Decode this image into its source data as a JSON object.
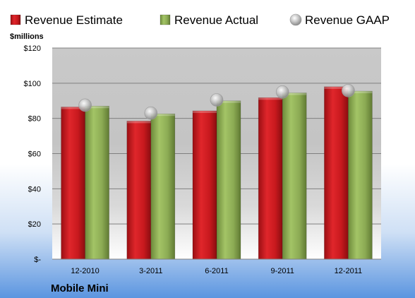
{
  "chart_data": {
    "type": "bar",
    "title": "",
    "unit_label": "$millions",
    "company_label": "Mobile Mini",
    "categories": [
      "12-2010",
      "3-2011",
      "6-2011",
      "9-2011",
      "12-2011"
    ],
    "series": [
      {
        "name": "Revenue Estimate",
        "type": "bar",
        "color": "#c8191e",
        "values": [
          86.5,
          78.5,
          84.3,
          91.8,
          98.0
        ]
      },
      {
        "name": "Revenue Actual",
        "type": "bar",
        "color": "#8cab54",
        "values": [
          87.0,
          82.6,
          90.0,
          94.5,
          95.5
        ]
      },
      {
        "name": "Revenue GAAP",
        "type": "marker",
        "color": "#b8b8b8",
        "values": [
          87.5,
          83.0,
          90.5,
          95.0,
          95.8
        ]
      }
    ],
    "yticks": [
      "$-",
      "$20",
      "$40",
      "$60",
      "$80",
      "$100",
      "$120"
    ],
    "ylim": [
      0,
      120
    ],
    "grid": true,
    "legend_position": "top"
  }
}
